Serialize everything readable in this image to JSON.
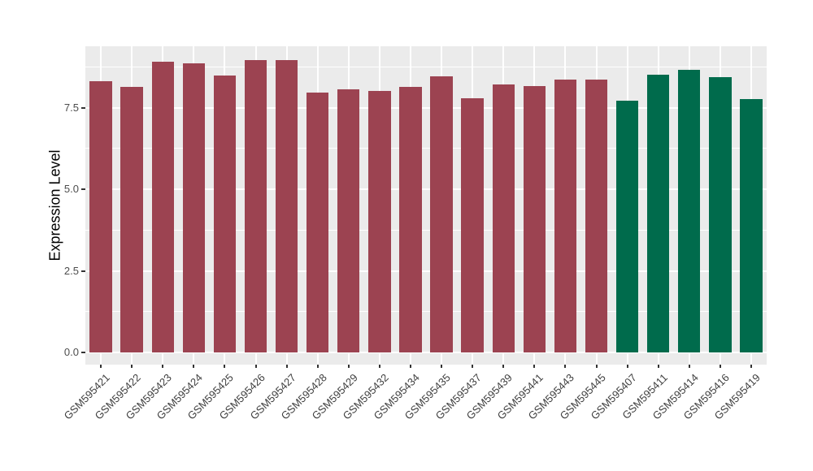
{
  "chart_data": {
    "type": "bar",
    "title": "",
    "xlabel": "",
    "ylabel": "Expression Level",
    "ylim": [
      -0.37,
      9.38
    ],
    "grid": "on",
    "legend": "none",
    "bar_width_fraction": 0.72,
    "yticks": [
      {
        "value": 0.0,
        "label": "0.0"
      },
      {
        "value": 2.5,
        "label": "2.5"
      },
      {
        "value": 5.0,
        "label": "5.0"
      },
      {
        "value": 7.5,
        "label": "7.5"
      }
    ],
    "minor_gridlines": [
      1.25,
      3.75,
      6.25,
      8.75
    ],
    "bar_colors": {
      "maroon": "#9C4351",
      "green": "#006B4C"
    },
    "bars": [
      {
        "label": "GSM595421",
        "value": 8.3,
        "color": "maroon"
      },
      {
        "label": "GSM595422",
        "value": 8.13,
        "color": "maroon"
      },
      {
        "label": "GSM595423",
        "value": 8.9,
        "color": "maroon"
      },
      {
        "label": "GSM595424",
        "value": 8.85,
        "color": "maroon"
      },
      {
        "label": "GSM595425",
        "value": 8.48,
        "color": "maroon"
      },
      {
        "label": "GSM595426",
        "value": 8.95,
        "color": "maroon"
      },
      {
        "label": "GSM595427",
        "value": 8.95,
        "color": "maroon"
      },
      {
        "label": "GSM595428",
        "value": 7.95,
        "color": "maroon"
      },
      {
        "label": "GSM595429",
        "value": 8.07,
        "color": "maroon"
      },
      {
        "label": "GSM595432",
        "value": 8.0,
        "color": "maroon"
      },
      {
        "label": "GSM595434",
        "value": 8.14,
        "color": "maroon"
      },
      {
        "label": "GSM595435",
        "value": 8.45,
        "color": "maroon"
      },
      {
        "label": "GSM595437",
        "value": 7.8,
        "color": "maroon"
      },
      {
        "label": "GSM595439",
        "value": 8.2,
        "color": "maroon"
      },
      {
        "label": "GSM595441",
        "value": 8.16,
        "color": "maroon"
      },
      {
        "label": "GSM595443",
        "value": 8.35,
        "color": "maroon"
      },
      {
        "label": "GSM595445",
        "value": 8.35,
        "color": "maroon"
      },
      {
        "label": "GSM595407",
        "value": 7.72,
        "color": "green"
      },
      {
        "label": "GSM595411",
        "value": 8.5,
        "color": "green"
      },
      {
        "label": "GSM595414",
        "value": 8.66,
        "color": "green"
      },
      {
        "label": "GSM595416",
        "value": 8.43,
        "color": "green"
      },
      {
        "label": "GSM595419",
        "value": 7.76,
        "color": "green"
      }
    ]
  },
  "panel": {
    "background": "#EBEBEB",
    "gridline_color": "#FFFFFF"
  }
}
